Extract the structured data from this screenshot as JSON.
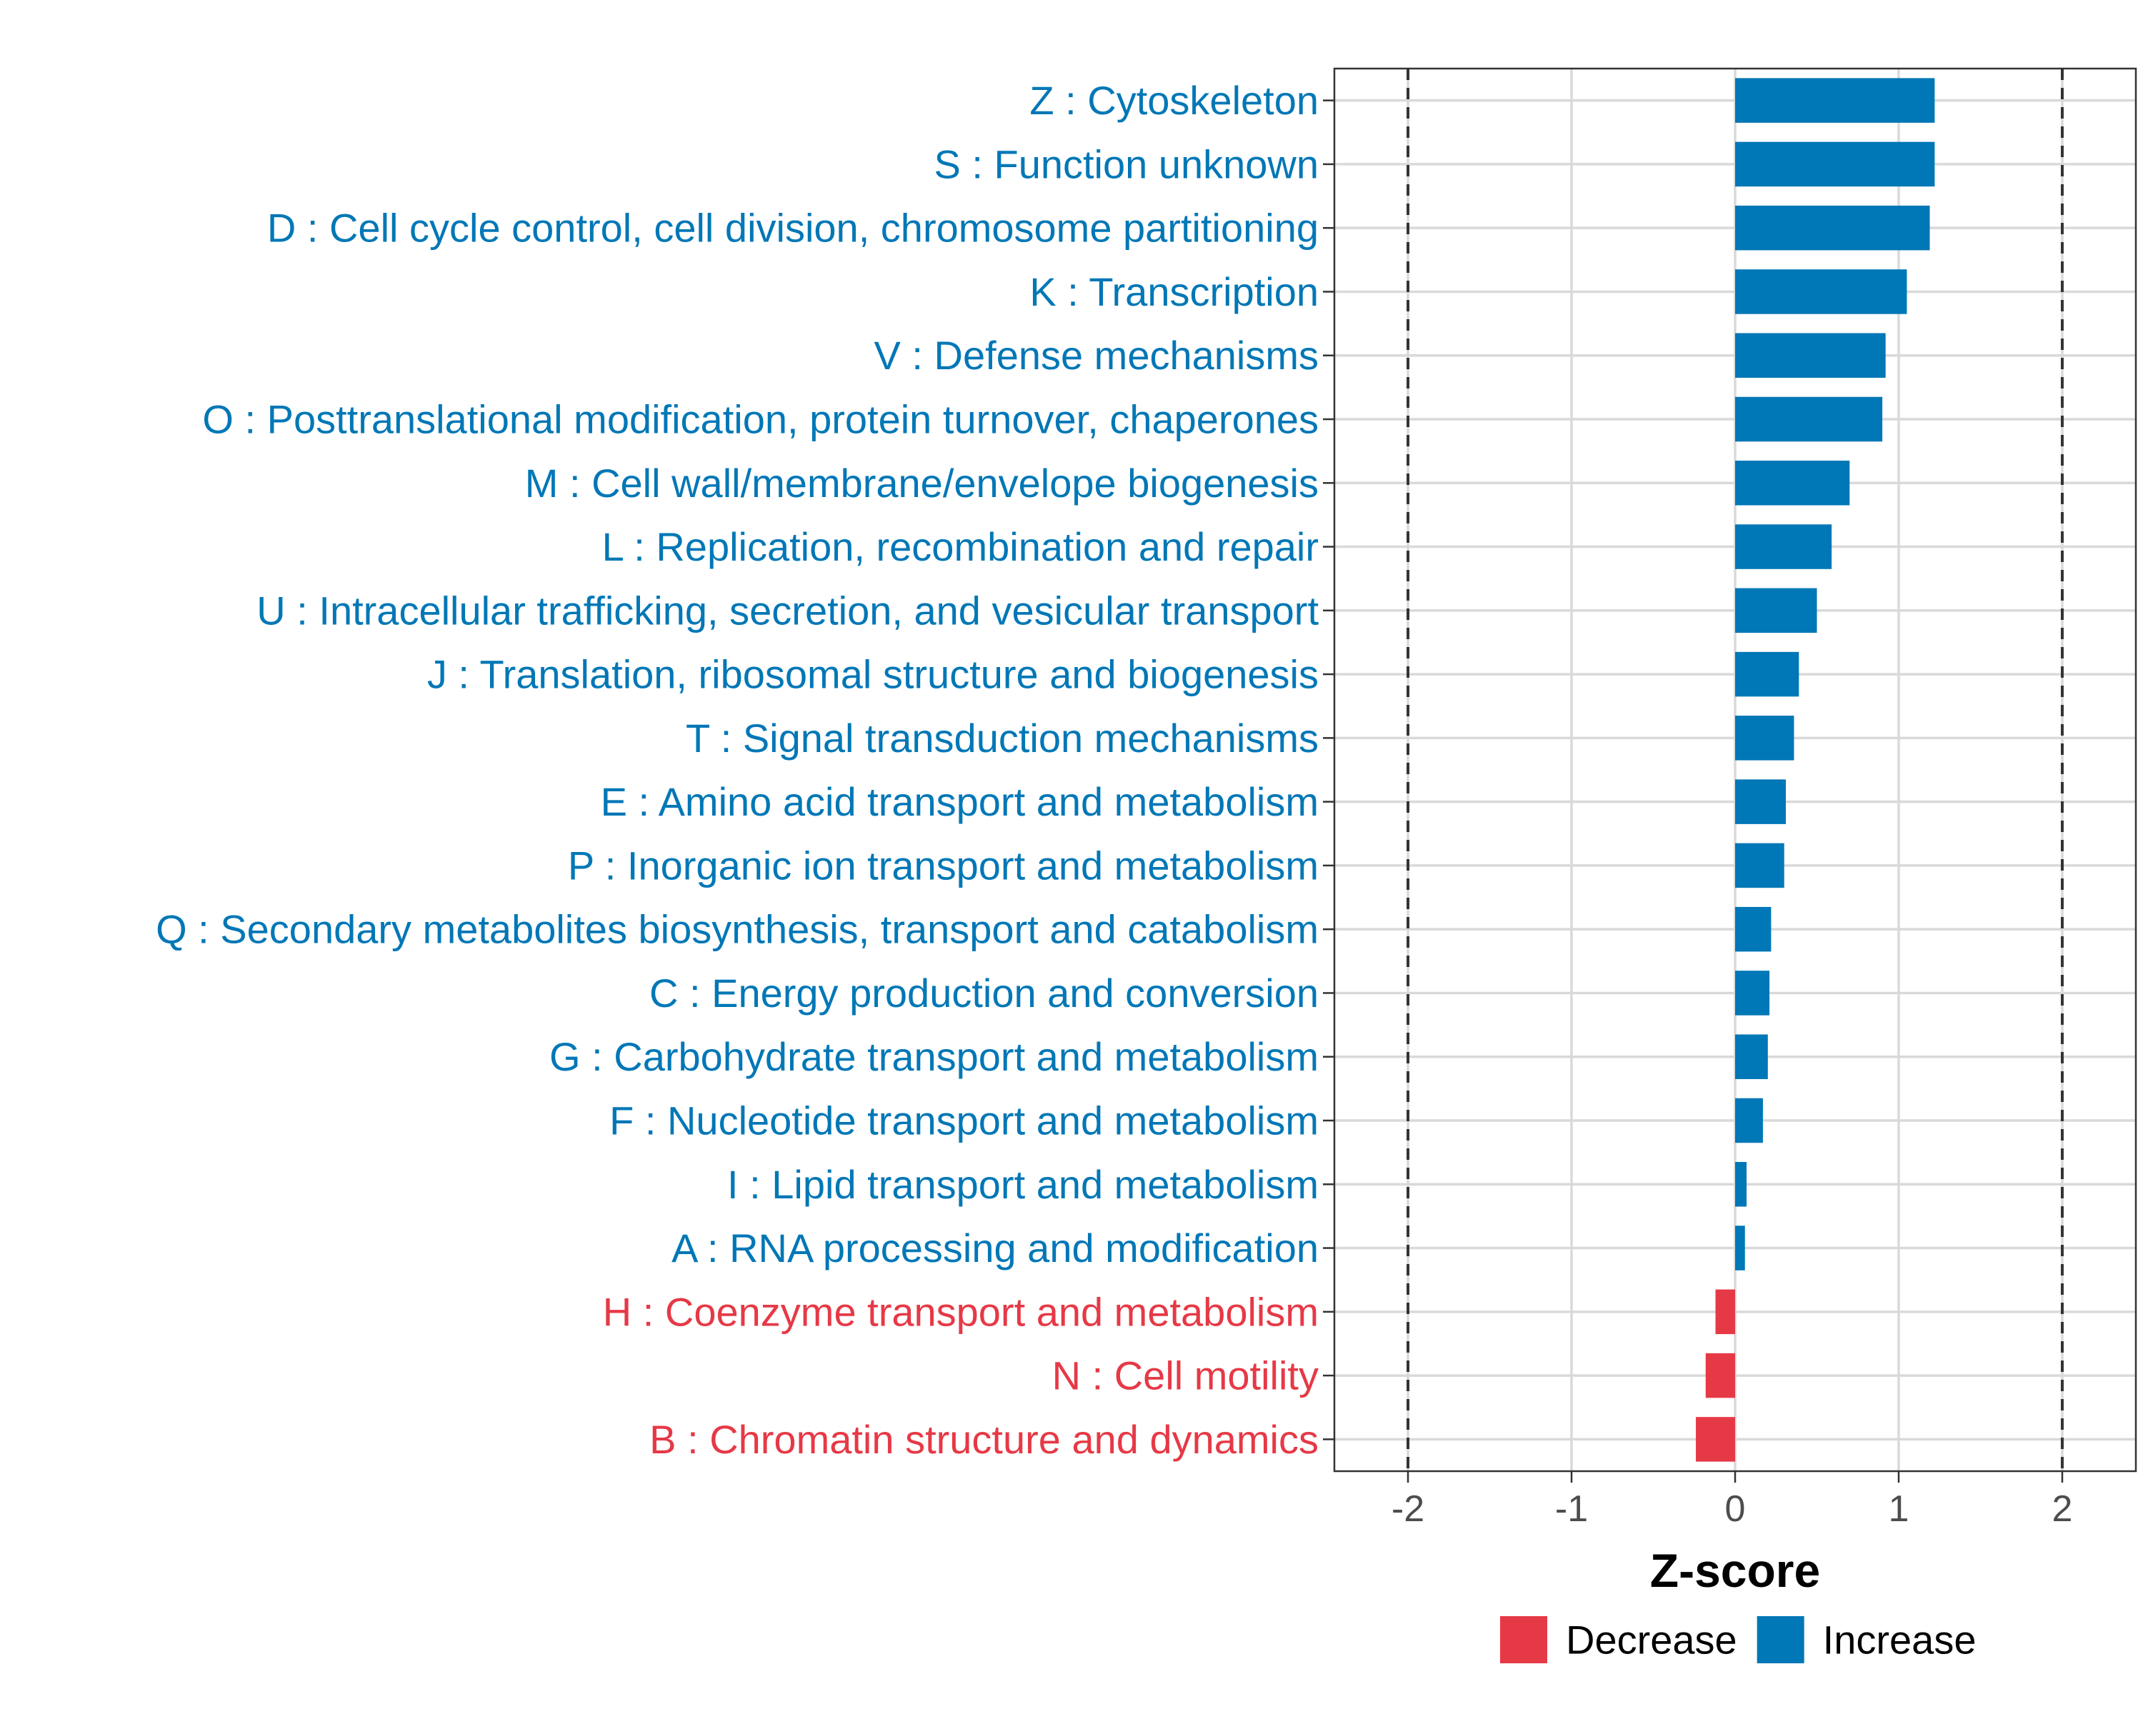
{
  "chart_data": {
    "type": "bar",
    "orientation": "horizontal",
    "categories": [
      "Z : Cytoskeleton",
      "S : Function unknown",
      "D : Cell cycle control, cell division, chromosome partitioning",
      "K : Transcription",
      "V : Defense mechanisms",
      "O : Posttranslational modification, protein turnover, chaperones",
      "M : Cell wall/membrane/envelope biogenesis",
      "L : Replication, recombination and repair",
      "U : Intracellular trafficking, secretion, and vesicular transport",
      "J : Translation, ribosomal structure and biogenesis",
      "T : Signal transduction mechanisms",
      "E : Amino acid transport and metabolism",
      "P : Inorganic ion transport and metabolism",
      "Q : Secondary metabolites biosynthesis, transport and catabolism",
      "C : Energy production and conversion",
      "G : Carbohydrate transport and metabolism",
      "F : Nucleotide transport and metabolism",
      "I : Lipid transport and metabolism",
      "A : RNA processing and modification",
      "H : Coenzyme transport and metabolism",
      "N : Cell motility",
      "B : Chromatin structure and dynamics"
    ],
    "values": [
      1.22,
      1.22,
      1.19,
      1.05,
      0.92,
      0.9,
      0.7,
      0.59,
      0.5,
      0.39,
      0.36,
      0.31,
      0.3,
      0.22,
      0.21,
      0.2,
      0.17,
      0.07,
      0.06,
      -0.12,
      -0.18,
      -0.24
    ],
    "groups": [
      "Increase",
      "Increase",
      "Increase",
      "Increase",
      "Increase",
      "Increase",
      "Increase",
      "Increase",
      "Increase",
      "Increase",
      "Increase",
      "Increase",
      "Increase",
      "Increase",
      "Increase",
      "Increase",
      "Increase",
      "Increase",
      "Increase",
      "Decrease",
      "Decrease",
      "Decrease"
    ],
    "xlabel": "Z-score",
    "ylabel": "",
    "xlim": [
      -2.45,
      2.45
    ],
    "xticks": [
      -2,
      -1,
      0,
      1,
      2
    ],
    "xtick_labels": [
      "-2",
      "-1",
      "0",
      "1",
      "2"
    ],
    "reference_lines": [
      -2,
      2
    ],
    "grid": true,
    "legend": {
      "position": "bottom",
      "entries": [
        {
          "name": "Decrease",
          "color": "#E63946"
        },
        {
          "name": "Increase",
          "color": "#0077B6"
        }
      ]
    },
    "colors": {
      "Decrease": "#E63946",
      "Increase": "#0077B6"
    }
  }
}
